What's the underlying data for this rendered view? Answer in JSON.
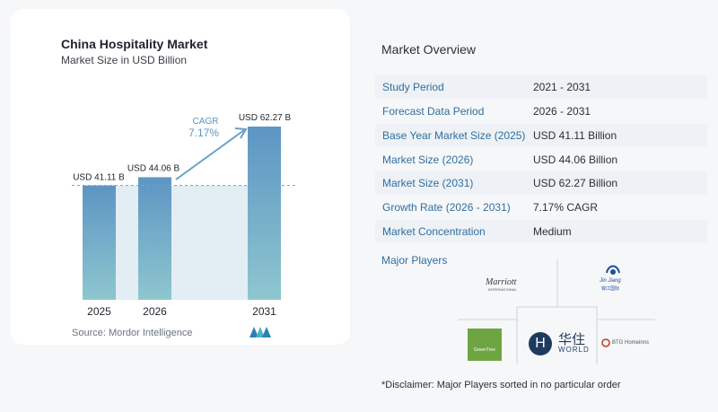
{
  "chart_card": {
    "title": "China Hospitality Market",
    "subtitle": "Market Size in USD Billion",
    "source": "Source:  Mordor Intelligence"
  },
  "chart_data": {
    "type": "bar",
    "title": "China Hospitality Market",
    "subtitle": "Market Size in USD Billion",
    "categories": [
      "2025",
      "2026",
      "2031"
    ],
    "values": [
      41.11,
      44.06,
      62.27
    ],
    "data_labels": [
      "USD 41.11 B",
      "USD 44.06 B",
      "USD 62.27 B"
    ],
    "cagr_label": "CAGR",
    "cagr_value": "7.17%",
    "ylim": [
      0,
      62.27
    ],
    "colors": {
      "bar_top": "#5d95c4",
      "bar_bottom": "#8ec6cf",
      "band": "#e3edf4",
      "arrow": "#6aa1c7",
      "cagr_text": "#5f95bf"
    }
  },
  "overview": {
    "title": "Market Overview",
    "rows": [
      {
        "label": "Study Period",
        "value": "2021 - 2031"
      },
      {
        "label": "Forecast Data Period",
        "value": "2026 - 2031"
      },
      {
        "label": "Base Year Market Size (2025)",
        "value": "USD 41.11 Billion"
      },
      {
        "label": "Market Size (2026)",
        "value": "USD 44.06 Billion"
      },
      {
        "label": "Market Size (2031)",
        "value": "USD 62.27 Billion"
      },
      {
        "label": "Growth Rate (2026 - 2031)",
        "value": "7.17% CAGR"
      },
      {
        "label": "Market Concentration",
        "value": "Medium"
      }
    ]
  },
  "players": {
    "title": "Major Players",
    "logos": {
      "marriott": "Marriott",
      "marriott_sub": "INTERNATIONAL",
      "jinjiang": "Jin Jiang",
      "jinjiang_sub": "锦江国际",
      "huazhu_cn": "华住",
      "huazhu_en": "WORLD",
      "huazhu_mark": "H",
      "btg": "BTG Homeinns",
      "greentree": "GreenTree"
    }
  },
  "disclaimer": "*Disclaimer: Major Players sorted in no particular order"
}
